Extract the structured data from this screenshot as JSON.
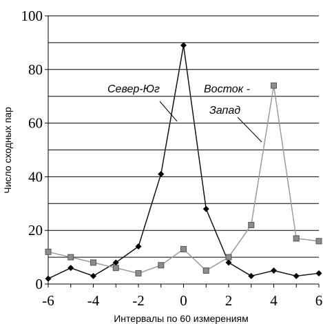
{
  "chart_data": {
    "type": "line",
    "xlabel": "Интервалы по 60 измерениям",
    "ylabel": "Число сходных пар",
    "xlim": [
      -6,
      6
    ],
    "ylim": [
      0,
      100
    ],
    "x_ticks": [
      "-6",
      "-4",
      "-2",
      "0",
      "2",
      "4",
      "6"
    ],
    "y_ticks": [
      "0",
      "20",
      "40",
      "60",
      "80",
      "100"
    ],
    "gridlines_y": [
      10,
      20,
      30,
      40,
      50,
      60,
      70,
      80,
      90,
      100
    ],
    "x": [
      -6,
      -5,
      -4,
      -3,
      -2,
      -1,
      0,
      1,
      2,
      3,
      4,
      5,
      6
    ],
    "series": [
      {
        "name": "Север-Юг",
        "values": [
          2,
          6,
          3,
          8,
          14,
          41,
          89,
          28,
          8,
          3,
          5,
          3,
          4
        ],
        "color": "#111111",
        "marker": "diamond"
      },
      {
        "name": "Восток - Запад",
        "values": [
          12,
          10,
          8,
          6,
          4,
          7,
          13,
          5,
          10,
          22,
          74,
          17,
          16
        ],
        "color": "#9a9a9a",
        "marker": "square"
      }
    ],
    "annotations": [
      {
        "text": "Север-Юг",
        "series": 0
      },
      {
        "text": "Восток -",
        "series": 1
      },
      {
        "text": "Запад",
        "series": 1
      }
    ]
  }
}
